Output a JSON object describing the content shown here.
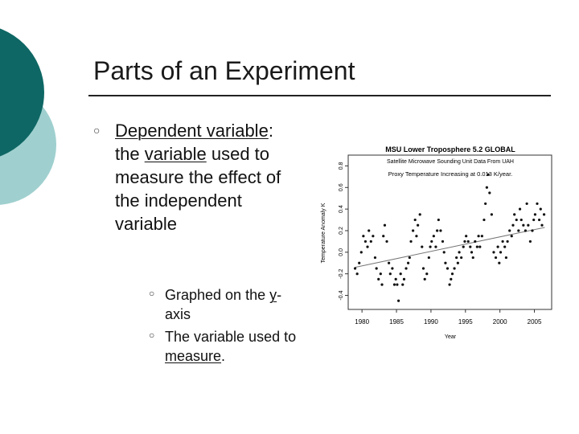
{
  "slide": {
    "title": "Parts of an Experiment",
    "bullet": {
      "parts": [
        "Dependent variable",
        ": the ",
        "variable",
        " used to measure the effect of the independent variable"
      ]
    },
    "subbullets": [
      {
        "parts": [
          "Graphed on the ",
          "y",
          "-axis"
        ]
      },
      {
        "parts": [
          "The variable used to ",
          "measure",
          "."
        ]
      }
    ]
  },
  "chart_data": {
    "type": "scatter",
    "title": "MSU Lower Troposphere 5.2 GLOBAL",
    "subtitle": "Satellite Microwave Sounding Unit Data From UAH",
    "annotation": "Proxy Temperature Increasing at 0.013 K/year.",
    "x_label": "Year",
    "y_label": "Temperature Anomaly K",
    "color": "#111111",
    "xlim": [
      1978,
      2007.5
    ],
    "ylim": [
      -0.53,
      0.9
    ],
    "xticks": [
      1980,
      1985,
      1990,
      1995,
      2000,
      2005
    ],
    "yticks": [
      -0.4,
      -0.2,
      {
        "value": 0,
        "label": "0.0"
      },
      0.2,
      0.4,
      0.6,
      0.8
    ],
    "x": [
      1979.0,
      1979.3,
      1979.6,
      1979.9,
      1980.2,
      1980.5,
      1980.8,
      1981.0,
      1981.3,
      1981.6,
      1981.9,
      1982.1,
      1982.4,
      1982.7,
      1982.9,
      1983.1,
      1983.3,
      1983.6,
      1983.9,
      1984.1,
      1984.4,
      1984.7,
      1984.9,
      1985.1,
      1985.3,
      1985.6,
      1985.9,
      1986.1,
      1986.4,
      1986.7,
      1986.9,
      1987.1,
      1987.4,
      1987.7,
      1987.9,
      1988.1,
      1988.4,
      1988.7,
      1988.9,
      1989.1,
      1989.4,
      1989.7,
      1989.9,
      1990.1,
      1990.4,
      1990.7,
      1990.9,
      1991.1,
      1991.4,
      1991.7,
      1991.9,
      1992.1,
      1992.4,
      1992.7,
      1992.9,
      1993.1,
      1993.4,
      1993.7,
      1993.9,
      1994.1,
      1994.4,
      1994.7,
      1994.9,
      1995.1,
      1995.4,
      1995.7,
      1995.9,
      1996.1,
      1996.4,
      1996.7,
      1996.9,
      1997.1,
      1997.4,
      1997.7,
      1997.9,
      1998.1,
      1998.3,
      1998.5,
      1998.8,
      1999.1,
      1999.4,
      1999.7,
      1999.9,
      2000.1,
      2000.4,
      2000.7,
      2000.9,
      2001.1,
      2001.4,
      2001.7,
      2001.9,
      2002.1,
      2002.4,
      2002.7,
      2002.9,
      2003.1,
      2003.4,
      2003.7,
      2003.9,
      2004.1,
      2004.4,
      2004.7,
      2004.9,
      2005.1,
      2005.4,
      2005.7,
      2005.9,
      2006.1,
      2006.4
    ],
    "values": [
      -0.15,
      -0.2,
      -0.1,
      0.0,
      0.15,
      0.1,
      0.05,
      0.2,
      0.1,
      0.15,
      -0.05,
      -0.15,
      -0.25,
      -0.2,
      -0.3,
      0.15,
      0.25,
      0.1,
      -0.1,
      -0.2,
      -0.15,
      -0.3,
      -0.25,
      -0.3,
      -0.45,
      -0.2,
      -0.3,
      -0.25,
      -0.15,
      -0.1,
      -0.05,
      0.1,
      0.2,
      0.3,
      0.15,
      0.25,
      0.35,
      0.05,
      -0.15,
      -0.25,
      -0.2,
      -0.05,
      0.05,
      0.1,
      0.15,
      0.05,
      0.2,
      0.3,
      0.2,
      0.1,
      0.0,
      -0.1,
      -0.15,
      -0.3,
      -0.25,
      -0.2,
      -0.15,
      -0.05,
      -0.1,
      0.0,
      -0.05,
      0.05,
      0.1,
      0.15,
      0.1,
      0.05,
      0.0,
      -0.05,
      0.1,
      0.05,
      0.15,
      0.05,
      0.15,
      0.3,
      0.45,
      0.6,
      0.72,
      0.55,
      0.35,
      0.0,
      -0.05,
      0.05,
      -0.1,
      0.0,
      0.1,
      0.05,
      -0.05,
      0.1,
      0.2,
      0.15,
      0.25,
      0.35,
      0.3,
      0.2,
      0.4,
      0.3,
      0.25,
      0.2,
      0.45,
      0.25,
      0.1,
      0.2,
      0.3,
      0.35,
      0.45,
      0.3,
      0.4,
      0.25,
      0.35
    ],
    "trend": {
      "x": [
        1979,
        2006.5
      ],
      "values": [
        -0.14,
        0.23
      ]
    }
  }
}
